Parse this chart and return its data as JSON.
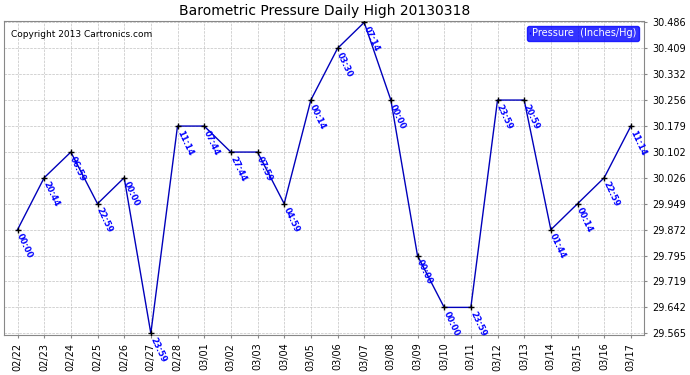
{
  "title": "Barometric Pressure Daily High 20130318",
  "copyright": "Copyright 2013 Cartronics.com",
  "legend_label": "Pressure  (Inches/Hg)",
  "background_color": "#ffffff",
  "plot_background": "#ffffff",
  "line_color": "#0000bb",
  "marker_color": "#000000",
  "grid_color": "#bbbbbb",
  "x_labels": [
    "02/22",
    "02/23",
    "02/24",
    "02/25",
    "02/26",
    "02/27",
    "02/28",
    "03/01",
    "03/02",
    "03/03",
    "03/04",
    "03/05",
    "03/06",
    "03/07",
    "03/08",
    "03/09",
    "03/10",
    "03/11",
    "03/12",
    "03/13",
    "03/14",
    "03/15",
    "03/16",
    "03/17"
  ],
  "y_values": [
    29.872,
    30.026,
    30.102,
    29.949,
    30.026,
    29.565,
    30.179,
    30.179,
    30.102,
    30.102,
    29.949,
    30.256,
    30.409,
    30.486,
    30.256,
    29.795,
    29.642,
    29.642,
    30.256,
    30.256,
    29.872,
    29.949,
    30.026,
    30.179
  ],
  "time_labels": [
    "00:00",
    "20:44",
    "06:59",
    "22:59",
    "00:00",
    "23:59",
    "11:14",
    "07:44",
    "27:44",
    "07:59",
    "04:59",
    "00:14",
    "03:30",
    "07:14",
    "00:00",
    "00:00",
    "00:00",
    "23:59",
    "23:59",
    "20:59",
    "01:44",
    "00:14",
    "22:59",
    "11:14"
  ],
  "ylim_min": 29.565,
  "ylim_max": 30.486,
  "yticks": [
    29.565,
    29.642,
    29.719,
    29.795,
    29.872,
    29.949,
    30.026,
    30.102,
    30.179,
    30.256,
    30.332,
    30.409,
    30.486
  ],
  "ytick_labels": [
    "29.565",
    "29.642",
    "29.719",
    "29.795",
    "29.872",
    "29.949",
    "30.026",
    "30.102",
    "30.179",
    "30.256",
    "30.332",
    "30.409",
    "30.486"
  ]
}
